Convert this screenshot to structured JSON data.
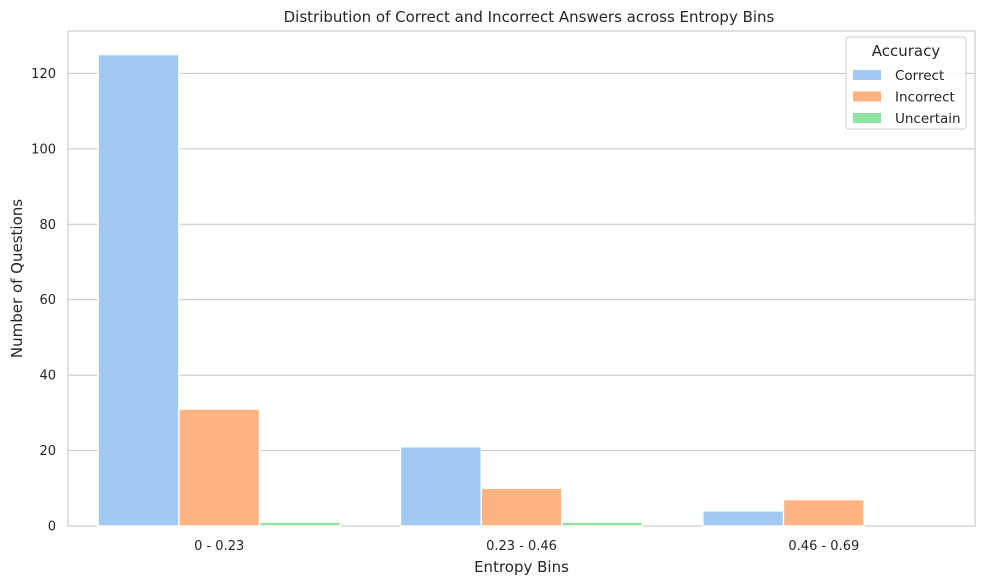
{
  "chart_data": {
    "type": "bar",
    "title": "Distribution of Correct and Incorrect Answers across Entropy Bins",
    "xlabel": "Entropy Bins",
    "ylabel": "Number of Questions",
    "categories": [
      "0 - 0.23",
      "0.23 - 0.46",
      "0.46 - 0.69"
    ],
    "series": [
      {
        "name": "Correct",
        "values": [
          125,
          21,
          4
        ],
        "color": "#a1c9f4"
      },
      {
        "name": "Incorrect",
        "values": [
          31,
          10,
          7
        ],
        "color": "#ffb482"
      },
      {
        "name": "Uncertain",
        "values": [
          1,
          1,
          0
        ],
        "color": "#8de5a1"
      }
    ],
    "ylim": [
      0,
      131.25
    ],
    "yticks": [
      0,
      20,
      40,
      60,
      80,
      100,
      120
    ],
    "grid": true,
    "legend": {
      "title": "Accuracy",
      "placement": "top-right"
    }
  }
}
